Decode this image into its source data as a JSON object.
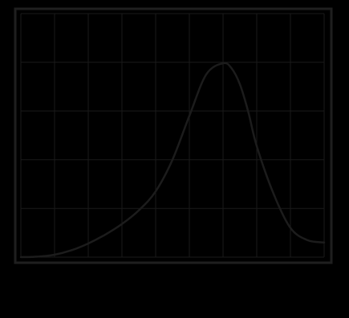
{
  "chart_data": {
    "type": "line",
    "title": "",
    "xlabel": "",
    "ylabel": "",
    "grid": true,
    "xlim": [
      0,
      9
    ],
    "ylim": [
      0,
      5
    ],
    "x_gridlines": 9,
    "y_gridlines": 5,
    "series": [
      {
        "x": [
          0,
          0.5,
          1,
          1.5,
          2,
          2.5,
          3,
          3.5,
          4,
          4.5,
          5,
          5.5,
          6,
          6.25,
          6.5,
          6.75,
          7,
          7.5,
          8,
          8.5,
          9
        ],
        "y": [
          0,
          0.01,
          0.05,
          0.14,
          0.28,
          0.46,
          0.68,
          0.96,
          1.35,
          2.0,
          2.9,
          3.75,
          3.98,
          3.88,
          3.55,
          2.98,
          2.28,
          1.3,
          0.6,
          0.35,
          0.3
        ]
      }
    ]
  },
  "colors": {
    "background": "#000000",
    "frame": "#1f1f1f",
    "grid": "#1a1a1a",
    "line": "#1c1c1c"
  }
}
